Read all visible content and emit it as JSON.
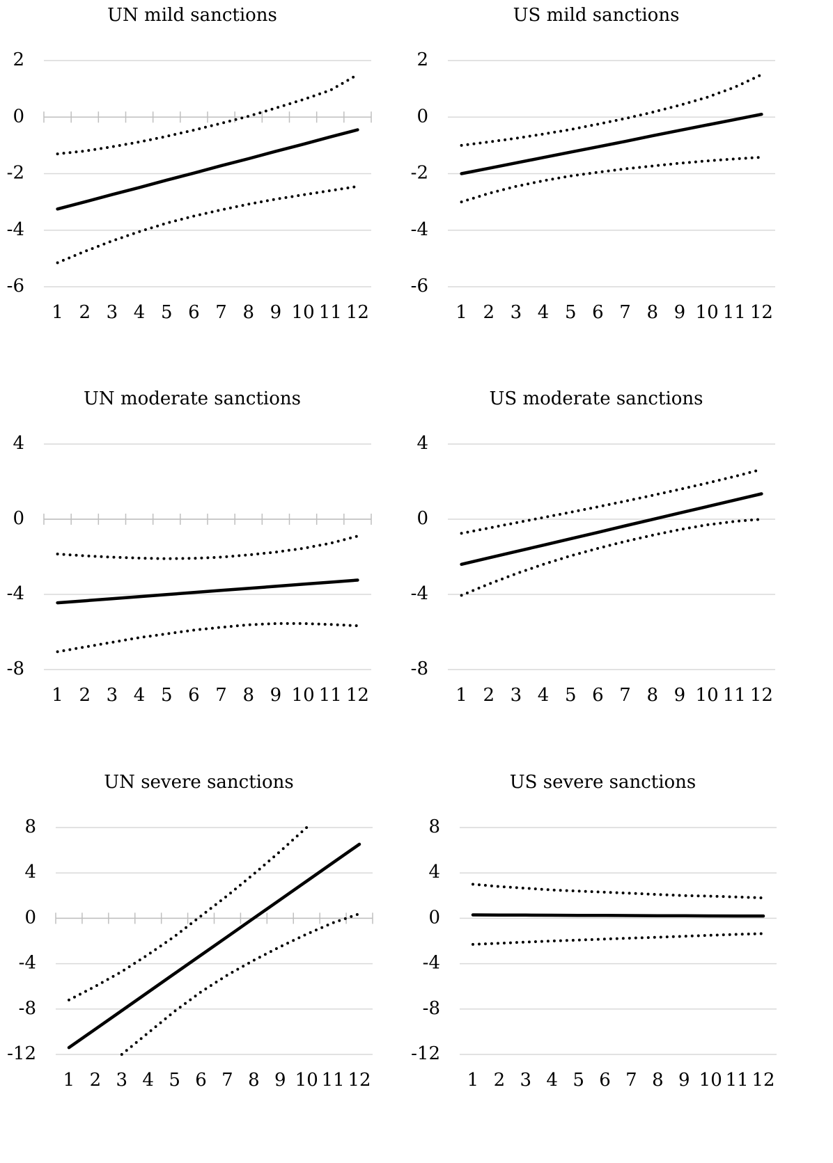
{
  "chart_data": [
    {
      "type": "line",
      "title": "UN mild sanctions",
      "categories": [
        1,
        2,
        3,
        4,
        5,
        6,
        7,
        8,
        9,
        10,
        11,
        12
      ],
      "ylim": [
        -6,
        2
      ],
      "yticks": [
        -6,
        -4,
        -2,
        0,
        2
      ],
      "grid": true,
      "zero_axis": true,
      "series": [
        {
          "color": "#000000",
          "style": "dotted",
          "values": [
            -1.3,
            -1.2,
            -1.05,
            -0.88,
            -0.68,
            -0.46,
            -0.22,
            0.03,
            0.32,
            0.62,
            0.95,
            1.5
          ]
        },
        {
          "color": "#000000",
          "style": "solid",
          "values": [
            -3.25,
            -3.0,
            -2.74,
            -2.49,
            -2.23,
            -1.98,
            -1.72,
            -1.47,
            -1.21,
            -0.96,
            -0.7,
            -0.45
          ]
        },
        {
          "color": "#000000",
          "style": "dotted",
          "values": [
            -5.15,
            -4.75,
            -4.38,
            -4.05,
            -3.75,
            -3.5,
            -3.28,
            -3.08,
            -2.9,
            -2.75,
            -2.6,
            -2.45
          ]
        }
      ]
    },
    {
      "type": "line",
      "title": "US mild sanctions",
      "categories": [
        1,
        2,
        3,
        4,
        5,
        6,
        7,
        8,
        9,
        10,
        11,
        12
      ],
      "ylim": [
        -6,
        2
      ],
      "yticks": [
        -6,
        -4,
        -2,
        0,
        2
      ],
      "grid": true,
      "zero_axis": false,
      "series": [
        {
          "color": "#000000",
          "style": "dotted",
          "values": [
            -1.0,
            -0.88,
            -0.75,
            -0.6,
            -0.44,
            -0.25,
            -0.05,
            0.17,
            0.42,
            0.7,
            1.05,
            1.5
          ]
        },
        {
          "color": "#000000",
          "style": "solid",
          "values": [
            -2.0,
            -1.81,
            -1.62,
            -1.43,
            -1.24,
            -1.05,
            -0.86,
            -0.66,
            -0.47,
            -0.28,
            -0.09,
            0.1
          ]
        },
        {
          "color": "#000000",
          "style": "dotted",
          "values": [
            -3.0,
            -2.7,
            -2.45,
            -2.25,
            -2.08,
            -1.95,
            -1.83,
            -1.73,
            -1.63,
            -1.55,
            -1.48,
            -1.42
          ]
        }
      ]
    },
    {
      "type": "line",
      "title": "UN moderate sanctions",
      "categories": [
        1,
        2,
        3,
        4,
        5,
        6,
        7,
        8,
        9,
        10,
        11,
        12
      ],
      "ylim": [
        -8,
        4
      ],
      "yticks": [
        -8,
        -4,
        0,
        4
      ],
      "grid": true,
      "zero_axis": true,
      "series": [
        {
          "color": "#000000",
          "style": "dotted",
          "values": [
            -1.85,
            -1.95,
            -2.02,
            -2.07,
            -2.1,
            -2.08,
            -2.02,
            -1.9,
            -1.75,
            -1.55,
            -1.28,
            -0.9
          ]
        },
        {
          "color": "#000000",
          "style": "solid",
          "values": [
            -4.45,
            -4.34,
            -4.23,
            -4.12,
            -4.01,
            -3.9,
            -3.79,
            -3.68,
            -3.57,
            -3.46,
            -3.35,
            -3.24
          ]
        },
        {
          "color": "#000000",
          "style": "dotted",
          "values": [
            -7.05,
            -6.8,
            -6.55,
            -6.3,
            -6.1,
            -5.9,
            -5.75,
            -5.62,
            -5.55,
            -5.55,
            -5.6,
            -5.67
          ]
        }
      ]
    },
    {
      "type": "line",
      "title": "US moderate sanctions",
      "categories": [
        1,
        2,
        3,
        4,
        5,
        6,
        7,
        8,
        9,
        10,
        11,
        12
      ],
      "ylim": [
        -8,
        4
      ],
      "yticks": [
        -8,
        -4,
        0,
        4
      ],
      "grid": true,
      "zero_axis": false,
      "series": [
        {
          "color": "#000000",
          "style": "dotted",
          "values": [
            -0.75,
            -0.47,
            -0.19,
            0.09,
            0.37,
            0.66,
            0.96,
            1.27,
            1.59,
            1.92,
            2.27,
            2.65
          ]
        },
        {
          "color": "#000000",
          "style": "solid",
          "values": [
            -2.4,
            -2.06,
            -1.72,
            -1.38,
            -1.04,
            -0.7,
            -0.35,
            -0.01,
            0.33,
            0.67,
            1.01,
            1.35
          ]
        },
        {
          "color": "#000000",
          "style": "dotted",
          "values": [
            -4.05,
            -3.45,
            -2.9,
            -2.4,
            -1.95,
            -1.55,
            -1.18,
            -0.85,
            -0.55,
            -0.3,
            -0.12,
            0.0
          ]
        }
      ]
    },
    {
      "type": "line",
      "title": "UN severe sanctions",
      "categories": [
        1,
        2,
        3,
        4,
        5,
        6,
        7,
        8,
        9,
        10,
        11,
        12
      ],
      "ylim": [
        -12,
        8
      ],
      "yticks": [
        -12,
        -8,
        -4,
        0,
        4,
        8
      ],
      "grid": true,
      "zero_axis": true,
      "series": [
        {
          "color": "#000000",
          "style": "dotted",
          "values": [
            -7.2,
            -6.0,
            -4.7,
            -3.2,
            -1.6,
            0.2,
            2.0,
            3.9,
            5.9,
            8.0,
            null,
            null
          ]
        },
        {
          "color": "#000000",
          "style": "solid",
          "values": [
            -11.4,
            -9.77,
            -8.14,
            -6.51,
            -4.88,
            -3.25,
            -1.62,
            0.01,
            1.64,
            3.27,
            4.9,
            6.53
          ]
        },
        {
          "color": "#000000",
          "style": "dotted",
          "values": [
            null,
            null,
            -12.0,
            -10.1,
            -8.2,
            -6.5,
            -5.0,
            -3.7,
            -2.5,
            -1.4,
            -0.4,
            0.4
          ]
        }
      ]
    },
    {
      "type": "line",
      "title": "US severe sanctions",
      "categories": [
        1,
        2,
        3,
        4,
        5,
        6,
        7,
        8,
        9,
        10,
        11,
        12
      ],
      "ylim": [
        -12,
        8
      ],
      "yticks": [
        -12,
        -8,
        -4,
        0,
        4,
        8
      ],
      "grid": true,
      "zero_axis": false,
      "series": [
        {
          "color": "#000000",
          "style": "dotted",
          "values": [
            3.0,
            2.8,
            2.65,
            2.5,
            2.4,
            2.3,
            2.2,
            2.1,
            2.0,
            1.95,
            1.88,
            1.8
          ]
        },
        {
          "color": "#000000",
          "style": "solid",
          "values": [
            0.3,
            0.29,
            0.28,
            0.27,
            0.26,
            0.25,
            0.24,
            0.23,
            0.22,
            0.21,
            0.2,
            0.2
          ]
        },
        {
          "color": "#000000",
          "style": "dotted",
          "values": [
            -2.3,
            -2.2,
            -2.1,
            -2.0,
            -1.92,
            -1.83,
            -1.75,
            -1.67,
            -1.58,
            -1.5,
            -1.42,
            -1.35
          ]
        }
      ]
    }
  ]
}
